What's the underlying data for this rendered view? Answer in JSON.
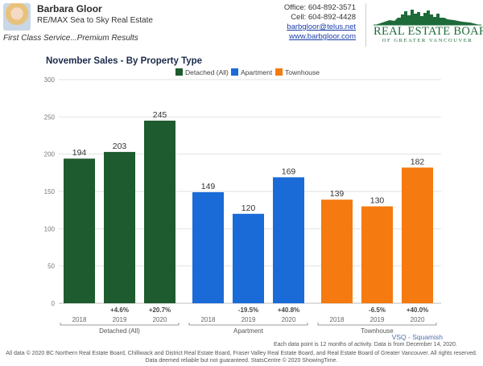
{
  "header": {
    "agent_name": "Barbara Gloor",
    "company": "RE/MAX Sea to Sky Real Estate",
    "tagline": "First Class Service...Premium Results",
    "office": "Office: 604-892-3571",
    "cell": "Cell: 604-892-4428",
    "email": "barbgloor@telus.net",
    "website": "www.barbgloor.com",
    "logo_title": "REAL ESTATE BOARD",
    "logo_subtitle": "OF GREATER VANCOUVER"
  },
  "chart_data": {
    "type": "bar",
    "title": "November Sales - By Property Type",
    "ylim": [
      0,
      300
    ],
    "yticks": [
      0,
      50,
      100,
      150,
      200,
      250,
      300
    ],
    "grid": true,
    "legend_position": "top",
    "groups": [
      {
        "name": "Detached (All)",
        "color": "#1e5b2e",
        "categories": [
          "2018",
          "2019",
          "2020"
        ],
        "values": [
          194,
          203,
          245
        ],
        "changes": [
          "",
          "+4.6%",
          "+20.7%"
        ]
      },
      {
        "name": "Apartment",
        "color": "#1a6ad8",
        "categories": [
          "2018",
          "2019",
          "2020"
        ],
        "values": [
          149,
          120,
          169
        ],
        "changes": [
          "",
          "-19.5%",
          "+40.8%"
        ]
      },
      {
        "name": "Townhouse",
        "color": "#f57a0f",
        "categories": [
          "2018",
          "2019",
          "2020"
        ],
        "values": [
          139,
          130,
          182
        ],
        "changes": [
          "",
          "-6.5%",
          "+40.0%"
        ]
      }
    ]
  },
  "footer": {
    "source": "VSQ - Squamish",
    "note1": "Each data point is 12 months of activity. Data is from December 14, 2020.",
    "note2": "All data © 2020 BC Northern Real Estate Board, Chilliwack and District Real Estate Board, Fraser Valley Real Estate Board, and Real Estate Board of Greater Vancouver. All rights reserved.",
    "note3": "Data deemed reliable but not guaranteed. StatsCentre © 2020 ShowingTime."
  }
}
